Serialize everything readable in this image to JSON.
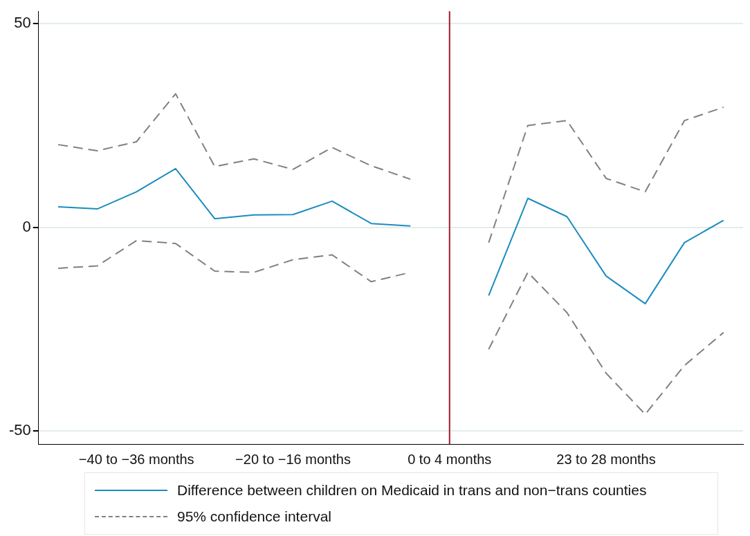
{
  "chart_data": {
    "type": "line",
    "categories": [
      null,
      null,
      "−40 to −36 months",
      null,
      null,
      null,
      "−20 to −16 months",
      null,
      null,
      null,
      "0 to 4 months",
      null,
      null,
      null,
      "23 to 28 months",
      null,
      null,
      null
    ],
    "series": [
      {
        "name": "Difference between children on Medicaid in trans and non−trans counties",
        "color": "#1a8cbf",
        "line_style": "solid",
        "values": [
          5.0,
          4.5,
          8.7,
          14.4,
          2.1,
          3.0,
          3.1,
          6.4,
          0.9,
          0.3,
          null,
          -16.8,
          7.1,
          2.6,
          -12.0,
          -18.8,
          -3.8,
          1.7
        ]
      },
      {
        "name": "95% confidence interval",
        "color": "#808080",
        "line_style": "dashed",
        "values": [
          20.3,
          18.8,
          21.0,
          32.8,
          14.9,
          16.8,
          14.2,
          19.6,
          15.1,
          11.8,
          null,
          -3.8,
          25.0,
          26.2,
          12.0,
          8.7,
          26.2,
          29.5
        ]
      },
      {
        "color": "#808080",
        "line_style": "dashed",
        "values": [
          -10.1,
          -9.5,
          -3.3,
          -4.0,
          -10.8,
          -11.1,
          -8.0,
          -6.8,
          -13.4,
          -11.1,
          null,
          -30.0,
          -11.1,
          -21.0,
          -35.9,
          -46.0,
          -34.0,
          -25.9
        ]
      }
    ],
    "ylim": [
      -53.3,
      53.1
    ],
    "yticks": [
      -50,
      0,
      50
    ],
    "grid": "y",
    "marker": "none",
    "legend": "bottom",
    "ref_lines": [
      {
        "axis": "x",
        "value": "0 to 4 months",
        "color": "#a0182c"
      }
    ]
  }
}
